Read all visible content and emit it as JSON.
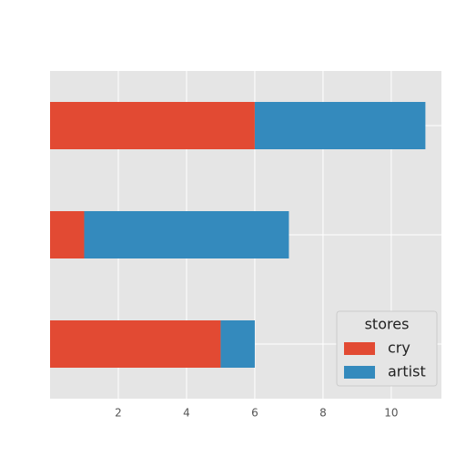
{
  "chart_data": {
    "type": "stacked-barh",
    "categories": [
      null,
      null,
      null
    ],
    "series": [
      {
        "name": "cry",
        "color": "#e24a33",
        "values": [
          6,
          1,
          5
        ]
      },
      {
        "name": "artist",
        "color": "#348abd",
        "values": [
          5,
          6,
          1
        ]
      }
    ],
    "xlim": [
      0,
      11.47
    ],
    "xticks": [
      2,
      4,
      6,
      8,
      10
    ],
    "grid": true,
    "legend": {
      "title": "stores",
      "position": "lower right"
    }
  }
}
